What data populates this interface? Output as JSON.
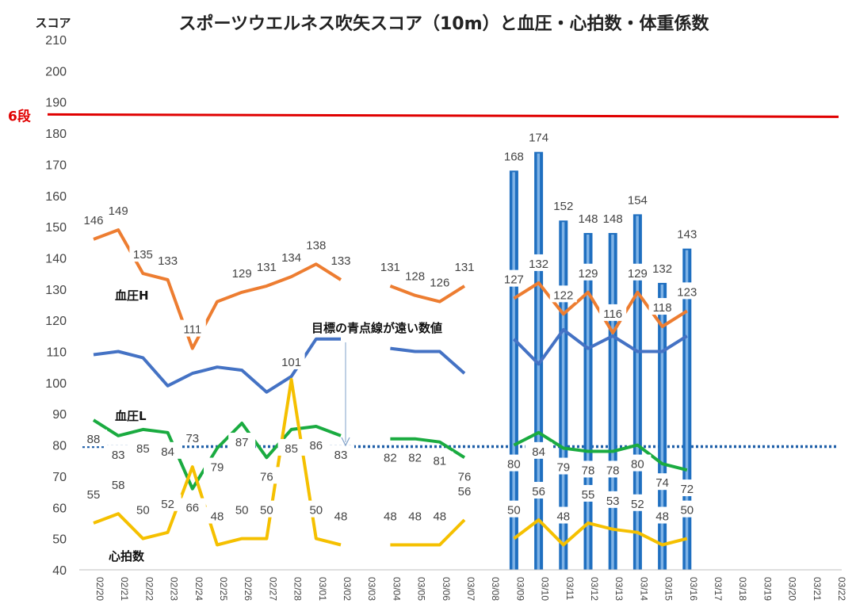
{
  "chart_data": {
    "type": "line",
    "title": "スポーツウエルネス吹矢スコア（10m）と血圧・心拍数・体重係数",
    "ylabel": "スコア",
    "ylim": [
      40,
      210
    ],
    "yticks": [
      40,
      50,
      60,
      70,
      80,
      90,
      100,
      110,
      120,
      130,
      140,
      150,
      160,
      170,
      180,
      190,
      200,
      210
    ],
    "categories": [
      "02/20",
      "02/21",
      "02/22",
      "02/23",
      "02/24",
      "02/25",
      "02/26",
      "02/27",
      "02/28",
      "03/01",
      "03/02",
      "03/03",
      "03/04",
      "03/05",
      "03/06",
      "03/07",
      "03/08",
      "03/09",
      "03/10",
      "03/11",
      "03/12",
      "03/13",
      "03/14",
      "03/15",
      "03/16",
      "03/17",
      "03/18",
      "03/19",
      "03/20",
      "03/21",
      "03/22"
    ],
    "grid": false,
    "reference_lines": [
      {
        "label": "6段",
        "value": 185.5,
        "color": "#e00000"
      },
      {
        "label": "",
        "value": 79.5,
        "color": "#1f5fa8",
        "style": "dotted"
      }
    ],
    "series": [
      {
        "name": "スコア",
        "kind": "bar",
        "color": "#1f6fc0",
        "values": [
          null,
          null,
          null,
          null,
          null,
          null,
          null,
          null,
          null,
          null,
          null,
          null,
          null,
          null,
          null,
          null,
          null,
          168,
          174,
          152,
          148,
          148,
          154,
          132,
          143,
          null,
          null,
          null,
          null,
          null,
          null
        ]
      },
      {
        "name": "血圧H",
        "kind": "line",
        "color": "#ed7d31",
        "values": [
          146,
          149,
          135,
          133,
          111,
          126,
          129,
          131,
          134,
          138,
          133,
          null,
          131,
          128,
          126,
          131,
          null,
          127,
          132,
          122,
          129,
          116,
          129,
          118,
          123,
          null,
          null,
          null,
          null,
          null,
          null
        ],
        "labels": [
          "146",
          "149",
          "135",
          "133",
          "111",
          "",
          "129",
          "131",
          "134",
          "138",
          "133",
          "",
          "131",
          "128",
          "126",
          "131",
          "",
          "127",
          "132",
          "122",
          "129",
          "116",
          "129",
          "118",
          "123",
          "",
          "",
          "",
          "",
          "",
          ""
        ]
      },
      {
        "name": "",
        "kind": "line",
        "color": "#4472c4",
        "values": [
          109,
          110,
          108,
          99,
          103,
          105,
          104,
          97,
          102,
          114,
          114,
          null,
          111,
          110,
          110,
          103,
          null,
          114,
          106,
          117,
          111,
          115,
          110,
          110,
          115,
          null,
          null,
          null,
          null,
          null,
          null
        ]
      },
      {
        "name": "血圧L",
        "kind": "line",
        "color": "#1aab40",
        "values": [
          88,
          83,
          85,
          84,
          66,
          79,
          87,
          76,
          85,
          86,
          83,
          null,
          82,
          82,
          81,
          76,
          null,
          80,
          84,
          79,
          78,
          78,
          80,
          74,
          72,
          null,
          null,
          null,
          null,
          null,
          null
        ],
        "labels": [
          "88",
          "83",
          "85",
          "84",
          "66",
          "79",
          "87",
          "76",
          "85",
          "86",
          "83",
          "",
          "82",
          "82",
          "81",
          "76",
          "",
          "80",
          "84",
          "79",
          "78",
          "78",
          "80",
          "74",
          "72",
          "",
          "",
          "",
          "",
          "",
          ""
        ]
      },
      {
        "name": "心拍数",
        "kind": "line",
        "color": "#f5c000",
        "values": [
          55,
          58,
          50,
          52,
          73,
          48,
          50,
          50,
          101,
          50,
          48,
          null,
          48,
          48,
          48,
          56,
          null,
          50,
          56,
          48,
          55,
          53,
          52,
          48,
          50,
          null,
          null,
          null,
          null,
          null,
          null
        ],
        "labels": [
          "55",
          "58",
          "50",
          "52",
          "73",
          "48",
          "50",
          "50",
          "101",
          "50",
          "48",
          "",
          "48",
          "48",
          "48",
          "56",
          "",
          "50",
          "56",
          "48",
          "55",
          "53",
          "52",
          "48",
          "50",
          "",
          "",
          "",
          "",
          "",
          ""
        ]
      }
    ],
    "annotations": [
      {
        "text": "目標の青点線が遠い数値"
      }
    ]
  }
}
